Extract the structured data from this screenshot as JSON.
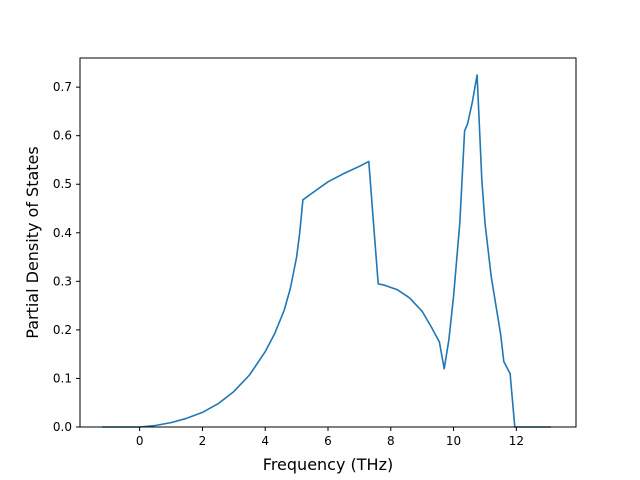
{
  "chart_data": {
    "type": "line",
    "title": "",
    "xlabel": "Frequency (THz)",
    "ylabel": "Partial Density of States",
    "xlim": [
      -1.9,
      13.9
    ],
    "ylim": [
      0.0,
      0.76
    ],
    "xticks": [
      0,
      2,
      4,
      6,
      8,
      10,
      12
    ],
    "yticks": [
      0.0,
      0.1,
      0.2,
      0.3,
      0.4,
      0.5,
      0.6,
      0.7
    ],
    "grid": false,
    "legend": "none",
    "series": [
      {
        "color": "#1f77b4",
        "x": [
          -1.2,
          -0.5,
          0.0,
          0.5,
          1.0,
          1.5,
          2.0,
          2.5,
          3.0,
          3.5,
          4.0,
          4.3,
          4.6,
          4.8,
          5.0,
          5.1,
          5.2,
          5.5,
          6.0,
          6.5,
          7.0,
          7.3,
          7.45,
          7.6,
          7.8,
          8.2,
          8.6,
          9.0,
          9.3,
          9.55,
          9.7,
          9.85,
          10.0,
          10.2,
          10.35,
          10.45,
          10.6,
          10.75,
          10.9,
          11.0,
          11.2,
          11.5,
          11.6,
          11.8,
          11.95,
          12.2,
          13.1
        ],
        "y": [
          0.0,
          0.0,
          0.0,
          0.003,
          0.009,
          0.018,
          0.03,
          0.048,
          0.073,
          0.107,
          0.155,
          0.192,
          0.24,
          0.285,
          0.35,
          0.4,
          0.468,
          0.482,
          0.505,
          0.522,
          0.537,
          0.547,
          0.42,
          0.295,
          0.292,
          0.283,
          0.266,
          0.238,
          0.205,
          0.175,
          0.12,
          0.18,
          0.27,
          0.42,
          0.61,
          0.625,
          0.67,
          0.725,
          0.51,
          0.42,
          0.31,
          0.19,
          0.135,
          0.11,
          0.0,
          0.0,
          0.0
        ]
      }
    ]
  }
}
